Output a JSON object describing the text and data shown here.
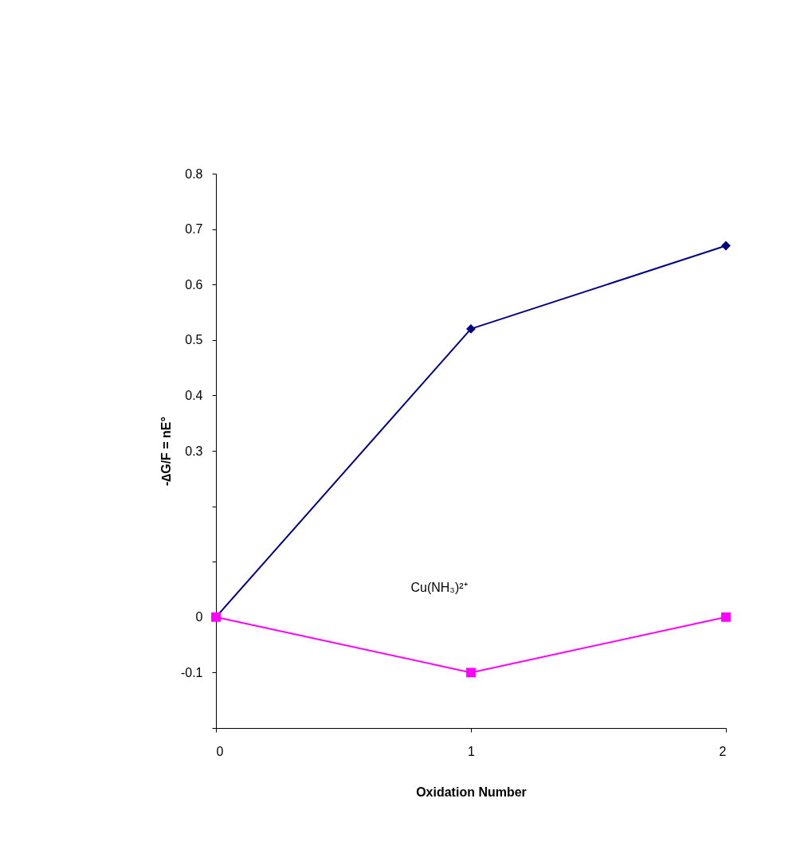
{
  "chart_data": {
    "type": "line",
    "xlabel": "Oxidation Number",
    "ylabel": "-∆G/F = nE°",
    "x": [
      0,
      1,
      2
    ],
    "series": [
      {
        "color": "#000080",
        "marker": "diamond",
        "values": [
          0,
          0.52,
          0.67
        ]
      },
      {
        "color": "#ff00ff",
        "marker": "square",
        "values": [
          0,
          -0.1,
          0
        ]
      }
    ],
    "xlim": [
      0,
      2
    ],
    "xticks": [
      0,
      1,
      2
    ],
    "ylim": [
      -0.2,
      0.8
    ],
    "yticks": [
      {
        "value": -0.2,
        "label": null
      },
      -0.1,
      0,
      {
        "value": 0.1,
        "label": null
      },
      {
        "value": 0.2,
        "label": null
      },
      0.3,
      0.4,
      0.5,
      0.6,
      0.7,
      0.8
    ],
    "annotations": [
      "Cu(NH₃)²⁺"
    ],
    "grid": false,
    "line_style": "solid"
  }
}
